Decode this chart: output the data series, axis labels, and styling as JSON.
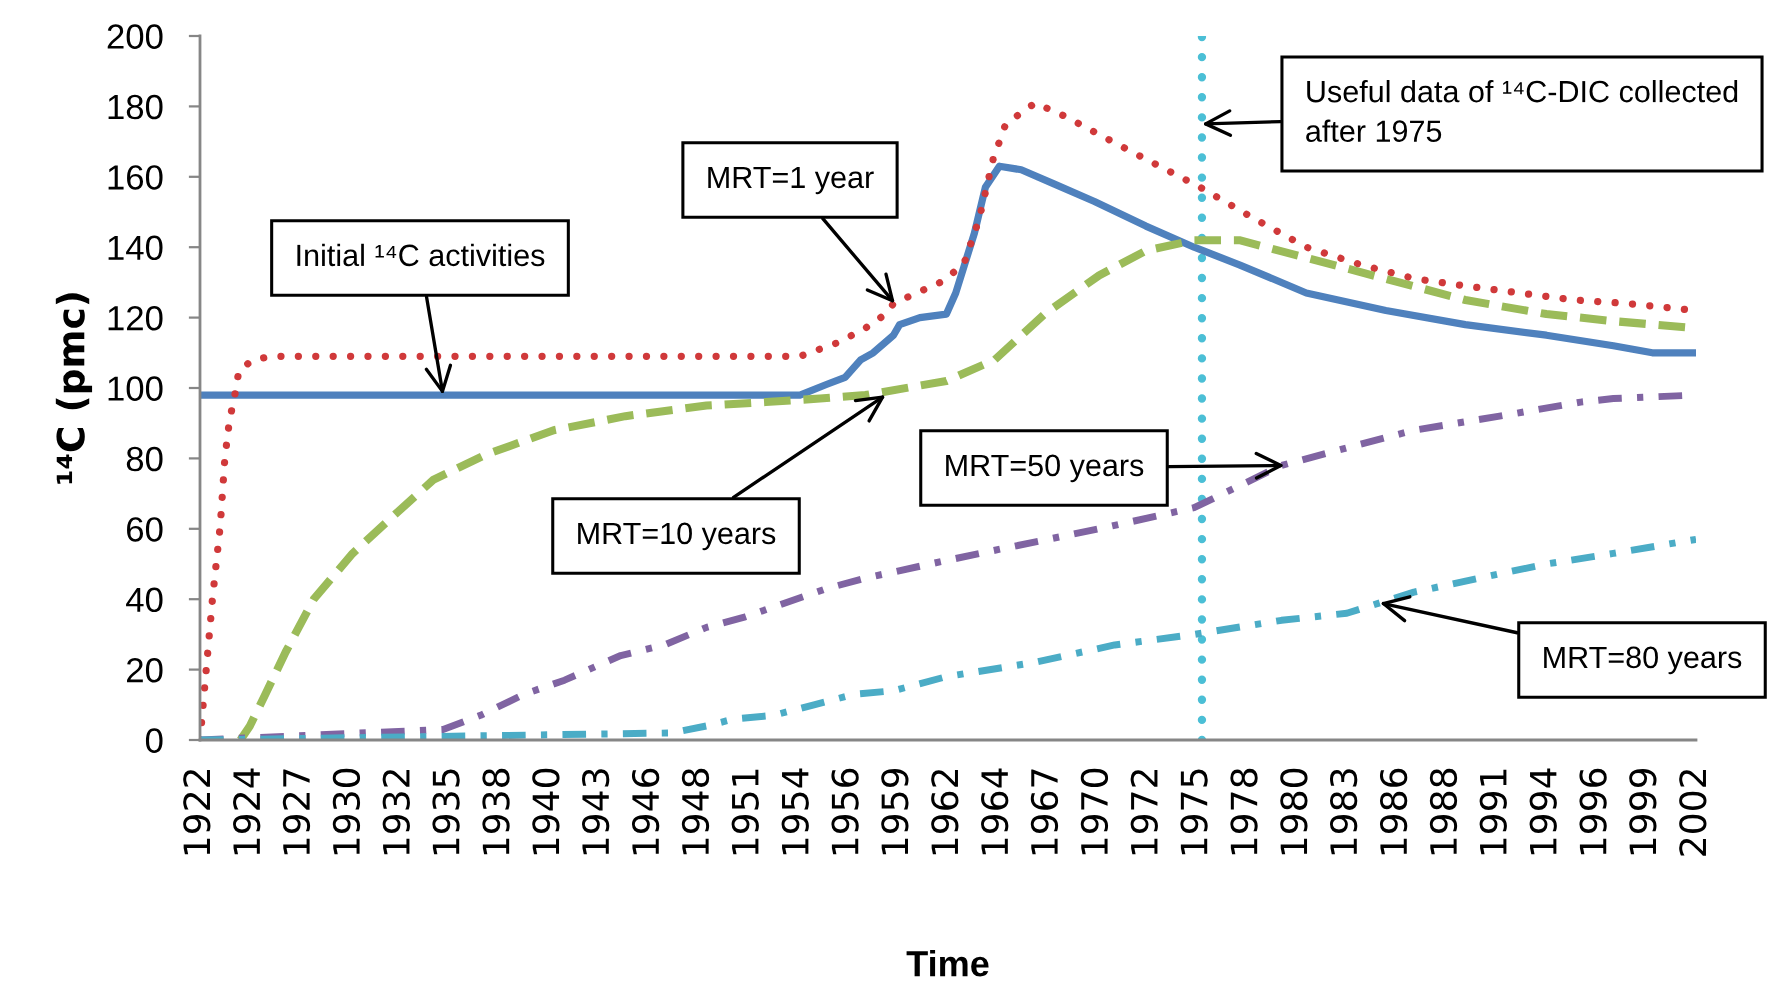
{
  "chart_data": {
    "type": "line",
    "xlabel": "Time",
    "ylabel": "¹⁴C (pmc)",
    "xlim": [
      "1922-01",
      "2002-01"
    ],
    "ylim": [
      0,
      200
    ],
    "xticks": [
      {
        "value": "1922-01",
        "label": "1922"
      },
      {
        "value": "1924-09",
        "label": "1924"
      },
      {
        "value": "1927-05",
        "label": "1927"
      },
      {
        "value": "1930-01",
        "label": "1930"
      },
      {
        "value": "1932-09",
        "label": "1932"
      },
      {
        "value": "1935-05",
        "label": "1935"
      },
      {
        "value": "1938-01",
        "label": "1938"
      },
      {
        "value": "1940-09",
        "label": "1940"
      },
      {
        "value": "1943-05",
        "label": "1943"
      },
      {
        "value": "1946-01",
        "label": "1946"
      },
      {
        "value": "1948-09",
        "label": "1948"
      },
      {
        "value": "1951-05",
        "label": "1951"
      },
      {
        "value": "1954-01",
        "label": "1954"
      },
      {
        "value": "1956-09",
        "label": "1956"
      },
      {
        "value": "1959-05",
        "label": "1959"
      },
      {
        "value": "1962-01",
        "label": "1962"
      },
      {
        "value": "1964-09",
        "label": "1964"
      },
      {
        "value": "1967-05",
        "label": "1967"
      },
      {
        "value": "1970-01",
        "label": "1970"
      },
      {
        "value": "1972-09",
        "label": "1972"
      },
      {
        "value": "1975-05",
        "label": "1975"
      },
      {
        "value": "1978-01",
        "label": "1978"
      },
      {
        "value": "1980-09",
        "label": "1980"
      },
      {
        "value": "1983-05",
        "label": "1983"
      },
      {
        "value": "1986-01",
        "label": "1986"
      },
      {
        "value": "1988-09",
        "label": "1988"
      },
      {
        "value": "1991-05",
        "label": "1991"
      },
      {
        "value": "1994-01",
        "label": "1994"
      },
      {
        "value": "1996-09",
        "label": "1996"
      },
      {
        "value": "1999-05",
        "label": "1999"
      },
      {
        "value": "2002-01",
        "label": "2002"
      }
    ],
    "yticks": [
      0,
      20,
      40,
      60,
      80,
      100,
      120,
      140,
      160,
      180,
      200
    ],
    "grid": false,
    "series": [
      {
        "color": "#4f81bd",
        "line_style": "solid",
        "x": [
          "1922-01",
          "1954-02",
          "1955-07",
          "1956-07",
          "1957-05",
          "1958-01",
          "1959-02",
          "1959-06",
          "1960-07",
          "1961-12",
          "1962-06",
          "1963-06",
          "1964-01",
          "1964-10",
          "1965-12",
          "1967-09",
          "1969-11",
          "1972-08",
          "1975-03",
          "1977-08",
          "1981-03",
          "1985-06",
          "1989-09",
          "1994-01",
          "1997-08",
          "1999-09",
          "2002-01"
        ],
        "values": [
          98,
          98,
          101,
          103,
          108,
          110,
          115,
          118,
          120,
          121,
          127,
          144,
          157,
          163,
          162,
          158,
          153,
          146,
          140,
          135,
          127,
          122,
          118,
          115,
          112,
          110,
          110
        ]
      },
      {
        "color": "#d0393a",
        "line_style": "dotted",
        "x": [
          "1922-01",
          "1922-09",
          "1923-02",
          "1923-05",
          "1923-08",
          "1923-11",
          "1924-02",
          "1924-11",
          "1925-11",
          "1954-02",
          "1956-03",
          "1957-08",
          "1958-09",
          "1959-02",
          "1960-05",
          "1961-08",
          "1962-11",
          "1963-09",
          "1964-06",
          "1965-02",
          "1966-09",
          "1968-05",
          "1970-02",
          "1972-08",
          "1975-07",
          "1978-06",
          "1981-03",
          "1984-02",
          "1987-01",
          "1989-09",
          "1992-08",
          "1995-07",
          "1998-05",
          "2002-01"
        ],
        "values": [
          0,
          40,
          61,
          80,
          91,
          97,
          105,
          108,
          109,
          109,
          113,
          117,
          121,
          124,
          127,
          130,
          135,
          148,
          165,
          175,
          181,
          177,
          172,
          165,
          157,
          148,
          140,
          135,
          131,
          129,
          127,
          125,
          124,
          122
        ]
      },
      {
        "color": "#9bbb59",
        "line_style": "dashed",
        "x": [
          "1924-03",
          "1924-09",
          "1925-07",
          "1926-08",
          "1928-02",
          "1930-03",
          "1932-06",
          "1934-07",
          "1937-04",
          "1940-12",
          "1944-10",
          "1949-02",
          "1952-04",
          "1955-03",
          "1957-08",
          "1961-12",
          "1964-07",
          "1967-03",
          "1970-02",
          "1972-08",
          "1975-03",
          "1977-08",
          "1981-03",
          "1985-06",
          "1989-09",
          "1994-01",
          "1997-08",
          "2002-01"
        ],
        "values": [
          0,
          4,
          13,
          25,
          40,
          53,
          64,
          74,
          81,
          88,
          92,
          95,
          96,
          97,
          98,
          102,
          108,
          121,
          132,
          139,
          142,
          142,
          137,
          131,
          125,
          121,
          119,
          117
        ]
      },
      {
        "color": "#8064a2",
        "line_style": "dashdot",
        "x": [
          "1922-01",
          "1935-01",
          "1937-01",
          "1939-05",
          "1941-07",
          "1944-07",
          "1946-11",
          "1949-02",
          "1951-03",
          "1953-05",
          "1955-07",
          "1957-08",
          "1961-12",
          "1965-07",
          "1970-02",
          "1975-03",
          "1979-11",
          "1983-05",
          "1986-12",
          "1991-07",
          "1995-11",
          "1997-08",
          "2002-01"
        ],
        "values": [
          0,
          3,
          7,
          13,
          17,
          24,
          27,
          32,
          35,
          39,
          43,
          46,
          51,
          55,
          60,
          66,
          78,
          83,
          88,
          92,
          96,
          97,
          98
        ]
      },
      {
        "color": "#4bacc6",
        "line_style": "dashdot",
        "x": [
          "1922-01",
          "1947-04",
          "1949-02",
          "1950-08",
          "1952-09",
          "1954-11",
          "1957-01",
          "1959-02",
          "1961-12",
          "1966-08",
          "1970-12",
          "1975-03",
          "1979-11",
          "1983-05",
          "1986-12",
          "1990-06",
          "1994-01",
          "1997-08",
          "2002-01"
        ],
        "values": [
          0,
          2,
          4,
          6,
          7,
          10,
          13,
          14,
          18,
          22,
          27,
          30,
          34,
          36,
          42,
          46,
          50,
          53,
          57
        ]
      }
    ],
    "ref_lines": [
      {
        "axis": "x",
        "value": "1975-08",
        "color": "#4bbfd6",
        "line_style": "dotted"
      }
    ],
    "annotations": [
      {
        "text": "Initial ¹⁴C activities",
        "x": "1935-01",
        "y": 98
      },
      {
        "text": "MRT=1 year",
        "x": "1959-03",
        "y": 124
      },
      {
        "text": "MRT=10 years",
        "x": "1958-09",
        "y": 98
      },
      {
        "text": "MRT=50 years",
        "x": "1980-01",
        "y": 78
      },
      {
        "text": "MRT=80 years",
        "x": "1985-02",
        "y": 39
      },
      {
        "text": "Useful data of ¹⁴C-DIC collected\nafter 1975",
        "x": "1975-08",
        "y": 175
      }
    ]
  }
}
